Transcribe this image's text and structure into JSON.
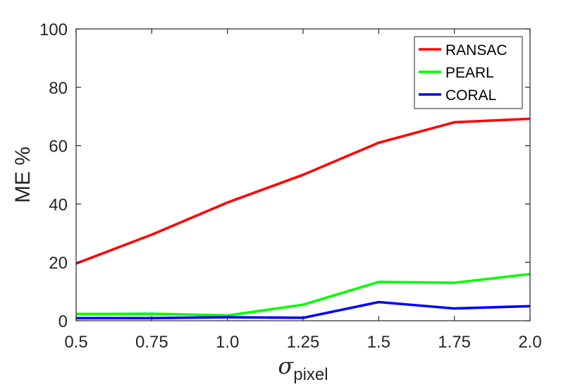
{
  "chart_data": {
    "type": "line",
    "title": "",
    "xlabel": {
      "main": "σ",
      "sub": "pixel"
    },
    "ylabel": "ME %",
    "x": [
      0.5,
      0.75,
      1.0,
      1.25,
      1.5,
      1.75,
      2.0
    ],
    "xticks": [
      "0.5",
      "0.75",
      "1.0",
      "1.25",
      "1.5",
      "1.75",
      "2.0"
    ],
    "yticks": [
      "0",
      "20",
      "40",
      "60",
      "80",
      "100"
    ],
    "xlim": [
      0.5,
      2.0
    ],
    "ylim": [
      0,
      100
    ],
    "grid": false,
    "legend_position": "top-right",
    "series": [
      {
        "name": "RANSAC",
        "color": "#ff0000",
        "values": [
          19.6,
          29.5,
          40.5,
          50.0,
          61.0,
          68.0,
          69.2
        ]
      },
      {
        "name": "PEARL",
        "color": "#00ff00",
        "values": [
          2.3,
          2.4,
          1.8,
          5.5,
          13.3,
          13.0,
          16.0
        ]
      },
      {
        "name": "CORAL",
        "color": "#0000ff",
        "values": [
          0.9,
          0.9,
          1.2,
          1.0,
          6.4,
          4.2,
          5.0
        ]
      }
    ]
  }
}
